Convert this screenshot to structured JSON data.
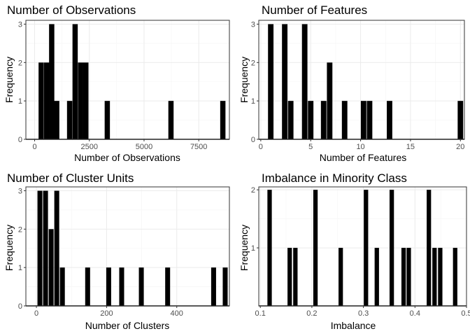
{
  "chart_data": [
    {
      "type": "bar",
      "title": "Number of Observations",
      "xlabel": "Number of Observations",
      "ylabel": "Frequency",
      "xlim": [
        -400,
        8900
      ],
      "ylim": [
        0,
        3.1
      ],
      "xticks": [
        0,
        2500,
        5000,
        7500
      ],
      "xtick_labels": [
        "0",
        "2500",
        "5000",
        "7500"
      ],
      "yticks": [
        0,
        1,
        2,
        3
      ],
      "ytick_labels": [
        "0",
        "1",
        "2",
        "3"
      ],
      "bin_width": 240,
      "bins": [
        {
          "x": 300,
          "count": 2
        },
        {
          "x": 550,
          "count": 2
        },
        {
          "x": 780,
          "count": 3
        },
        {
          "x": 1010,
          "count": 1
        },
        {
          "x": 1600,
          "count": 1
        },
        {
          "x": 1850,
          "count": 3
        },
        {
          "x": 2100,
          "count": 2
        },
        {
          "x": 2340,
          "count": 2
        },
        {
          "x": 3320,
          "count": 1
        },
        {
          "x": 6230,
          "count": 1
        },
        {
          "x": 8600,
          "count": 1
        }
      ],
      "grid": true,
      "legend": "none"
    },
    {
      "type": "bar",
      "title": "Number of Features",
      "xlabel": "Number of Features",
      "ylabel": "Frequency",
      "xlim": [
        -0.2,
        20.4
      ],
      "ylim": [
        0,
        3.1
      ],
      "xticks": [
        0,
        5,
        10,
        15,
        20
      ],
      "xtick_labels": [
        "0",
        "5",
        "10",
        "15",
        "20"
      ],
      "yticks": [
        0,
        1,
        2,
        3
      ],
      "ytick_labels": [
        "0",
        "1",
        "2",
        "3"
      ],
      "bin_width": 0.55,
      "bins": [
        {
          "x": 1,
          "count": 3
        },
        {
          "x": 2.4,
          "count": 3
        },
        {
          "x": 3,
          "count": 1
        },
        {
          "x": 4.4,
          "count": 3
        },
        {
          "x": 5,
          "count": 1
        },
        {
          "x": 6.3,
          "count": 1
        },
        {
          "x": 6.9,
          "count": 2
        },
        {
          "x": 8.4,
          "count": 1
        },
        {
          "x": 10.3,
          "count": 1
        },
        {
          "x": 10.9,
          "count": 1
        },
        {
          "x": 12.9,
          "count": 1
        },
        {
          "x": 20,
          "count": 1
        }
      ],
      "grid": true,
      "legend": "none"
    },
    {
      "type": "bar",
      "title": "Number of Cluster Units",
      "xlabel": "Number of Clusters",
      "ylabel": "Frequency",
      "xlim": [
        -30,
        550
      ],
      "ylim": [
        0,
        3.1
      ],
      "xticks": [
        0,
        200,
        400
      ],
      "xtick_labels": [
        "0",
        "200",
        "400"
      ],
      "yticks": [
        0,
        1,
        2,
        3
      ],
      "ytick_labels": [
        "0",
        "1",
        "2",
        "3"
      ],
      "bin_width": 14,
      "bins": [
        {
          "x": 10,
          "count": 3
        },
        {
          "x": 26,
          "count": 3
        },
        {
          "x": 42,
          "count": 2
        },
        {
          "x": 58,
          "count": 3
        },
        {
          "x": 74,
          "count": 1
        },
        {
          "x": 146,
          "count": 1
        },
        {
          "x": 206,
          "count": 1
        },
        {
          "x": 243,
          "count": 1
        },
        {
          "x": 299,
          "count": 1
        },
        {
          "x": 374,
          "count": 1
        },
        {
          "x": 505,
          "count": 1
        },
        {
          "x": 538,
          "count": 1
        }
      ],
      "grid": true,
      "legend": "none"
    },
    {
      "type": "bar",
      "title": "Imbalance in Minority Class",
      "xlabel": "Imbalance",
      "ylabel": "Frequency",
      "xlim": [
        0.097,
        0.5
      ],
      "ylim": [
        0,
        2.05
      ],
      "xticks": [
        0.1,
        0.2,
        0.3,
        0.4,
        0.5
      ],
      "xtick_labels": [
        "0.1",
        "0.2",
        "0.3",
        "0.4",
        "0.5"
      ],
      "yticks": [
        1,
        2
      ],
      "ytick_labels": [
        "1",
        "2"
      ],
      "bin_width": 0.0085,
      "bins": [
        {
          "x": 0.118,
          "count": 2
        },
        {
          "x": 0.157,
          "count": 1
        },
        {
          "x": 0.168,
          "count": 1
        },
        {
          "x": 0.207,
          "count": 2
        },
        {
          "x": 0.256,
          "count": 1
        },
        {
          "x": 0.305,
          "count": 2
        },
        {
          "x": 0.326,
          "count": 1
        },
        {
          "x": 0.355,
          "count": 2
        },
        {
          "x": 0.378,
          "count": 1
        },
        {
          "x": 0.388,
          "count": 1
        },
        {
          "x": 0.427,
          "count": 2
        },
        {
          "x": 0.438,
          "count": 1
        },
        {
          "x": 0.449,
          "count": 1
        },
        {
          "x": 0.478,
          "count": 1
        }
      ],
      "grid": true,
      "legend": "none"
    }
  ]
}
